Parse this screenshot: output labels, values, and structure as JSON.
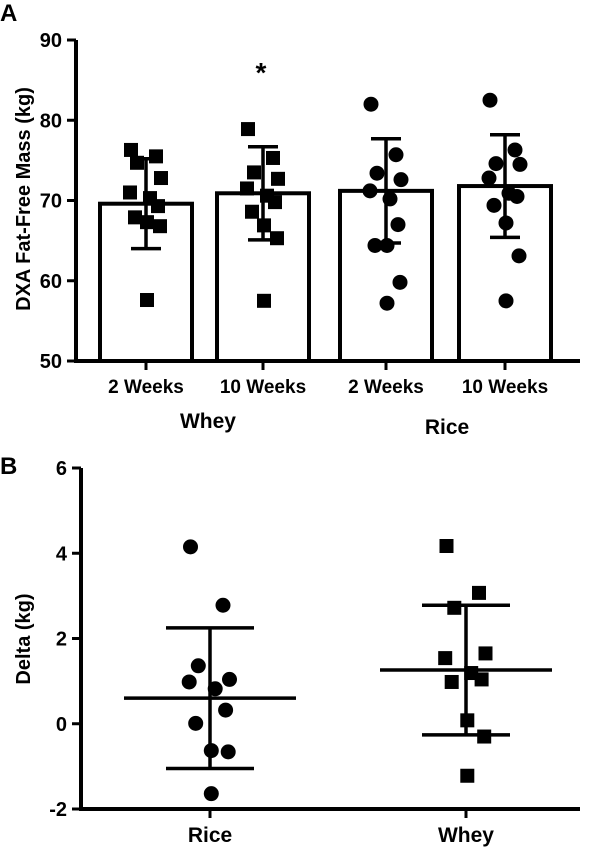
{
  "chart_data": [
    {
      "panel_label": "A",
      "type": "bar",
      "ylabel": "DXA  Fat-Free Mass (kg)",
      "ylim": [
        50,
        90
      ],
      "yticks": [
        "50",
        "60",
        "70",
        "80",
        "90"
      ],
      "categories": [
        "2 Weeks",
        "10 Weeks",
        "2 Weeks",
        "10 Weeks"
      ],
      "groups": [
        "Whey",
        "Rice"
      ],
      "marker_by_group": {
        "Whey": "square",
        "Rice": "circle"
      },
      "significance_marker": {
        "category_index": 1,
        "text": "*"
      },
      "bars": [
        {
          "group": "Whey",
          "category": "2 Weeks",
          "mean": 69.6,
          "sd": 5.6,
          "points": [
            76.3,
            75.5,
            74.7,
            72.8,
            71.0,
            70.3,
            69.3,
            67.9,
            67.3,
            66.8,
            57.6
          ]
        },
        {
          "group": "Whey",
          "category": "10 Weeks",
          "mean": 70.9,
          "sd": 5.8,
          "points": [
            78.9,
            75.3,
            73.5,
            72.7,
            71.5,
            70.6,
            69.8,
            68.6,
            66.9,
            65.3,
            57.5
          ]
        },
        {
          "group": "Rice",
          "category": "2 Weeks",
          "mean": 71.2,
          "sd": 6.5,
          "points": [
            82.0,
            75.7,
            73.4,
            72.6,
            71.2,
            70.2,
            67.0,
            64.4,
            64.4,
            59.8,
            57.2
          ]
        },
        {
          "group": "Rice",
          "category": "10 Weeks",
          "mean": 71.8,
          "sd": 6.4,
          "points": [
            82.5,
            76.3,
            74.6,
            74.5,
            72.8,
            70.9,
            70.5,
            69.4,
            67.2,
            63.1,
            57.5
          ]
        }
      ]
    },
    {
      "panel_label": "B",
      "type": "scatter",
      "ylabel": "Delta (kg)",
      "ylim": [
        -2,
        6
      ],
      "yticks": [
        "-2",
        "0",
        "2",
        "4",
        "6"
      ],
      "categories": [
        "Rice",
        "Whey"
      ],
      "series": [
        {
          "name": "Rice",
          "marker": "circle",
          "mean": 0.6,
          "sd": 1.65,
          "points": [
            4.15,
            2.78,
            1.36,
            1.04,
            0.98,
            0.82,
            0.32,
            0.01,
            -0.63,
            -0.66,
            -1.64
          ]
        },
        {
          "name": "Whey",
          "marker": "square",
          "mean": 1.26,
          "sd": 1.52,
          "points": [
            4.17,
            3.07,
            2.72,
            1.65,
            1.54,
            1.19,
            1.04,
            0.98,
            0.08,
            -0.3,
            -1.22
          ]
        }
      ]
    }
  ]
}
